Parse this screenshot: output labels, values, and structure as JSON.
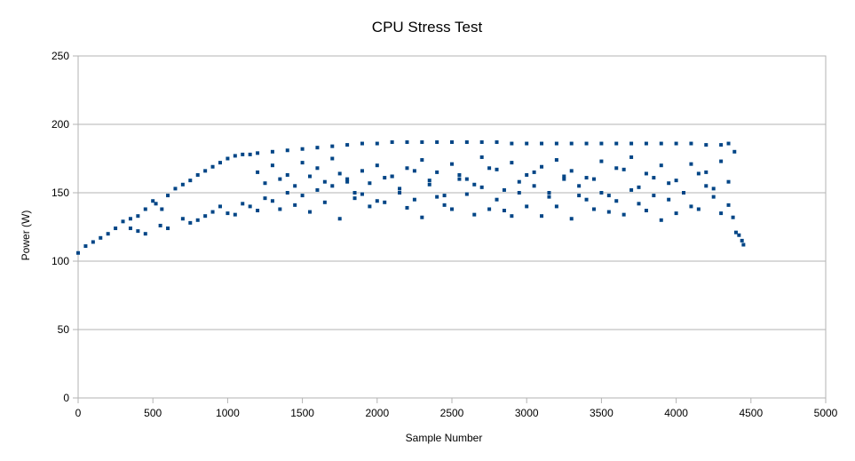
{
  "chart_data": {
    "type": "scatter",
    "title": "CPU Stress Test",
    "xlabel": "Sample Number",
    "ylabel": "Power (W)",
    "xlim": [
      0,
      5000
    ],
    "ylim": [
      0,
      250
    ],
    "x_ticks": [
      0,
      500,
      1000,
      1500,
      2000,
      2500,
      3000,
      3500,
      4000,
      4500,
      5000
    ],
    "y_ticks": [
      0,
      50,
      100,
      150,
      200,
      250
    ],
    "grid": "horizontal",
    "legend": "none",
    "marker_color": "#004586",
    "marker": "square",
    "series": [
      {
        "x": [
          0,
          50,
          100,
          150,
          200,
          250,
          300,
          350,
          400,
          450,
          500,
          520,
          560,
          600,
          650,
          700,
          750,
          800,
          850,
          900,
          950,
          1000,
          1050,
          1100,
          1150,
          1200,
          1300,
          1400,
          1500,
          1600,
          1700,
          1800,
          1900,
          2000,
          2100,
          2200,
          2300,
          2400,
          2500,
          2600,
          2700,
          2800,
          2900,
          3000,
          3100,
          3200,
          3300,
          3400,
          3500,
          3600,
          3700,
          3800,
          3900,
          4000,
          4100,
          4200,
          4300,
          4350,
          4390,
          4400,
          4420,
          4440,
          4450,
          350,
          400,
          450,
          550,
          600,
          700,
          750,
          800,
          850,
          900,
          950,
          1000,
          1050,
          1100,
          1150,
          1200,
          1250,
          1300,
          1350,
          1400,
          1450,
          1500,
          1550,
          1600,
          1650,
          1700,
          1750,
          1800,
          1850,
          1900,
          1950,
          2000,
          2050,
          2100,
          2150,
          2200,
          2250,
          2300,
          2350,
          2400,
          2450,
          2500,
          2550,
          2600,
          2650,
          2700,
          2750,
          2800,
          2850,
          2900,
          2950,
          3000,
          3050,
          3100,
          3150,
          3200,
          3250,
          3300,
          3350,
          3400,
          3450,
          3500,
          3550,
          3600,
          3650,
          3700,
          3750,
          3800,
          3850,
          3900,
          3950,
          4000,
          4050,
          4100,
          4150,
          4200,
          4250,
          4300,
          4350,
          4380,
          1200,
          1300,
          1400,
          1500,
          1600,
          1700,
          1800,
          1900,
          2000,
          2100,
          2200,
          2300,
          2400,
          2500,
          2600,
          2700,
          2800,
          2900,
          3000,
          3100,
          3200,
          3300,
          3400,
          3500,
          3600,
          3700,
          3800,
          3900,
          4000,
          4100,
          4200,
          4300,
          1250,
          1350,
          1450,
          1550,
          1650,
          1750,
          1850,
          1950,
          2050,
          2150,
          2250,
          2350,
          2450,
          2550,
          2650,
          2750,
          2850,
          2950,
          3050,
          3150,
          3250,
          3350,
          3450,
          3550,
          3650,
          3750,
          3850,
          3950,
          4050,
          4150,
          4250,
          4350
        ],
        "y": [
          106,
          111,
          114,
          117,
          120,
          124,
          129,
          131,
          133,
          138,
          144,
          142,
          138,
          148,
          153,
          156,
          159,
          163,
          166,
          169,
          172,
          175,
          177,
          178,
          178,
          179,
          180,
          181,
          182,
          183,
          184,
          185,
          186,
          186,
          187,
          187,
          187,
          187,
          187,
          187,
          187,
          187,
          186,
          186,
          186,
          186,
          186,
          186,
          186,
          186,
          186,
          186,
          186,
          186,
          186,
          185,
          185,
          186,
          180,
          121,
          119,
          115,
          112,
          124,
          122,
          120,
          126,
          124,
          131,
          128,
          130,
          133,
          136,
          140,
          135,
          134,
          142,
          140,
          137,
          146,
          144,
          138,
          150,
          141,
          148,
          136,
          152,
          143,
          155,
          131,
          158,
          146,
          149,
          140,
          144,
          143,
          162,
          150,
          139,
          145,
          132,
          156,
          147,
          141,
          138,
          160,
          149,
          134,
          154,
          138,
          145,
          137,
          133,
          150,
          140,
          155,
          133,
          147,
          140,
          160,
          131,
          148,
          145,
          138,
          150,
          136,
          144,
          134,
          152,
          142,
          137,
          148,
          130,
          145,
          135,
          150,
          140,
          138,
          155,
          147,
          135,
          141,
          132,
          165,
          170,
          163,
          172,
          168,
          175,
          160,
          166,
          170,
          162,
          168,
          174,
          165,
          171,
          160,
          176,
          167,
          172,
          163,
          169,
          174,
          166,
          161,
          173,
          168,
          176,
          164,
          170,
          159,
          171,
          165,
          173,
          157,
          160,
          155,
          162,
          158,
          164,
          150,
          157,
          161,
          153,
          166,
          159,
          148,
          163,
          156,
          168,
          152,
          158,
          165,
          150,
          162,
          155,
          160,
          148,
          167,
          154,
          161,
          157,
          150,
          164,
          153,
          158
        ]
      }
    ]
  }
}
